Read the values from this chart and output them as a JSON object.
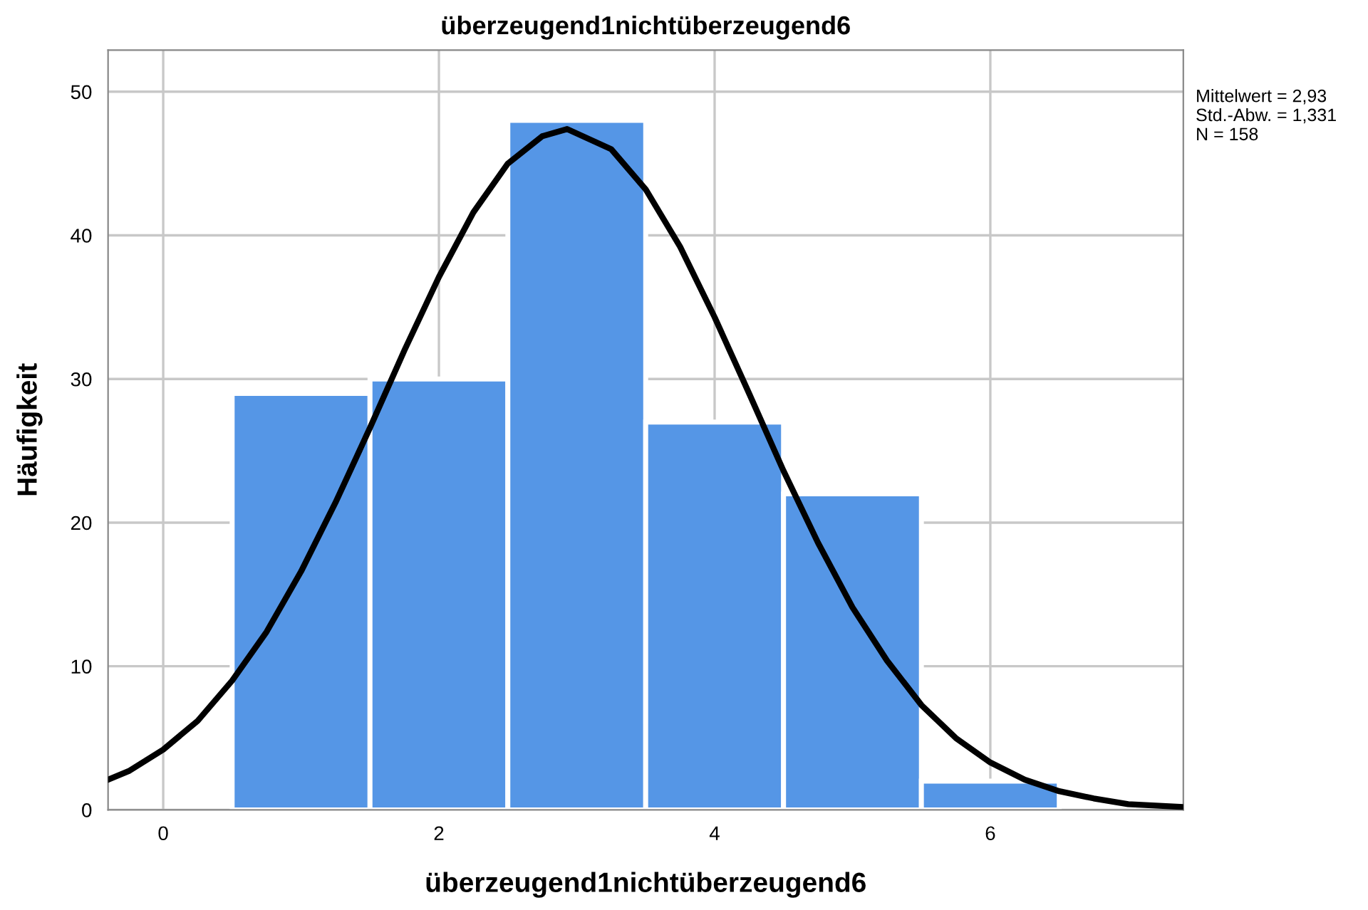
{
  "chart_data": {
    "type": "histogram",
    "title": "überzeugend1nichtüberzeugend6",
    "xlabel": "überzeugend1nichtüberzeugend6",
    "ylabel": "Häufigkeit",
    "bins": [
      0.5,
      1.5,
      2.5,
      3.5,
      4.5,
      5.5,
      6.5
    ],
    "values": [
      29,
      30,
      48,
      27,
      22,
      2
    ],
    "color": "#5596e6",
    "series": [
      {
        "type": "line",
        "color": "#000000",
        "x": [
          -0.4,
          -0.25,
          0,
          0.25,
          0.5,
          0.75,
          1,
          1.25,
          1.5,
          1.75,
          2,
          2.25,
          2.5,
          2.75,
          2.93,
          3.25,
          3.5,
          3.75,
          4,
          4.25,
          4.5,
          4.75,
          5,
          5.25,
          5.5,
          5.75,
          6,
          6.25,
          6.5,
          6.75,
          7,
          7.4
        ],
        "values": [
          2.1,
          2.7,
          4.2,
          6.2,
          9.0,
          12.4,
          16.6,
          21.4,
          26.6,
          32.0,
          37.1,
          41.6,
          45.0,
          46.9,
          47.4,
          46.0,
          43.2,
          39.2,
          34.3,
          29.0,
          23.6,
          18.6,
          14.1,
          10.4,
          7.3,
          5.0,
          3.3,
          2.1,
          1.3,
          0.8,
          0.4,
          0.2
        ]
      }
    ],
    "xlim": [
      -0.4,
      7.4
    ],
    "ylim": [
      0,
      52.9
    ],
    "xticks": [
      0,
      2,
      4,
      6
    ],
    "yticks": [
      0,
      10,
      20,
      30,
      40,
      50
    ],
    "grid": true,
    "annotations": [
      "Mittelwert = 2,93",
      "Std.-Abw. = 1,331",
      "N = 158"
    ]
  }
}
